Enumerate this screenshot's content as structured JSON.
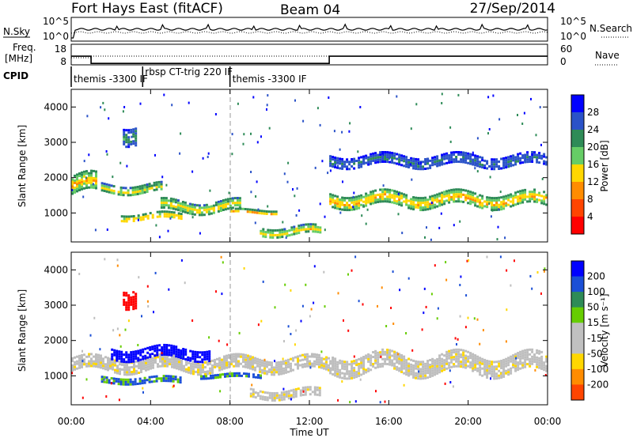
{
  "header": {
    "station": "Fort Hays East (fitACF)",
    "beam": "Beam 04",
    "date": "27/Sep/2014"
  },
  "top_panels": {
    "nsky_label": "N.Sky",
    "nsky_ticks": [
      "10^5",
      "10^0"
    ],
    "nsearch_label": "N.Search",
    "nsearch_ticks": [
      "10^5",
      "10^0"
    ],
    "freq_label_1": "Freq.",
    "freq_label_2": "[MHz]",
    "freq_ticks": [
      "18",
      "8"
    ],
    "nave_label": "Nave",
    "nave_ticks": [
      "60",
      "0"
    ],
    "cpid_label": "CPID",
    "cpid_segments": [
      {
        "label": "themis -3300 IF",
        "start_hour": 0.0
      },
      {
        "label": "rbsp CT-trig 220 IF",
        "start_hour": 3.6
      },
      {
        "label": "themis -3300 IF",
        "start_hour": 8.0
      }
    ],
    "freq_steps": [
      {
        "from_hour": 0.0,
        "to_hour": 1.0,
        "value": 14.5
      },
      {
        "from_hour": 1.0,
        "to_hour": 13.0,
        "value": 11.0
      },
      {
        "from_hour": 13.0,
        "to_hour": 24.0,
        "value": 14.5
      }
    ]
  },
  "power_panel": {
    "ylabel": "Slant Range [km]",
    "yticks": [
      "4000",
      "3000",
      "2000",
      "1000"
    ],
    "colorbar_label": "Power [dB]",
    "colorbar_ticks": [
      "28",
      "24",
      "20",
      "16",
      "12",
      "8",
      "4"
    ]
  },
  "velocity_panel": {
    "ylabel": "Slant Range [km]",
    "yticks": [
      "4000",
      "3000",
      "2000",
      "1000"
    ],
    "colorbar_label": "Velocity [m s⁻¹]",
    "colorbar_ticks": [
      "200",
      "100",
      "50",
      "15",
      "-15",
      "-50",
      "-100",
      "-200"
    ]
  },
  "xaxis": {
    "label": "Time UT",
    "ticks": [
      "00:00",
      "04:00",
      "08:00",
      "12:00",
      "16:00",
      "20:00",
      "00:00"
    ]
  },
  "colors": {
    "power_scale": [
      "#0000ff",
      "#2a52c8",
      "#2e8b57",
      "#66cd66",
      "#ffd700",
      "#ff8c00",
      "#ff4500",
      "#ff0000"
    ],
    "velocity_scale": [
      "#0000ff",
      "#1b4fd6",
      "#2e8b57",
      "#66cd00",
      "#c0c0c0",
      "#c0c0c0",
      "#ffd700",
      "#ff8c00",
      "#ff4500",
      "#ff0000"
    ],
    "ground_scatter": "#bebebe"
  },
  "chart_data": {
    "type": "heatmap",
    "x_range_hours": [
      0,
      24
    ],
    "y_range_km": [
      180,
      4500
    ],
    "power_bands": [
      {
        "name": "band-a",
        "start_hour": 0.0,
        "end_hour": 1.2,
        "center_km": 1800,
        "width_km": 500,
        "level_db": 22
      },
      {
        "name": "band-b",
        "start_hour": 1.5,
        "end_hour": 4.5,
        "center_km": 1700,
        "width_km": 250,
        "level_db": 18
      },
      {
        "name": "band-c",
        "start_hour": 2.5,
        "end_hour": 5.5,
        "center_km": 900,
        "width_km": 200,
        "level_db": 22
      },
      {
        "name": "band-d",
        "start_hour": 4.5,
        "end_hour": 8.5,
        "center_km": 1200,
        "width_km": 300,
        "level_db": 20
      },
      {
        "name": "band-e",
        "start_hour": 8.0,
        "end_hour": 10.5,
        "center_km": 1050,
        "width_km": 120,
        "level_db": 22
      },
      {
        "name": "band-f",
        "start_hour": 9.5,
        "end_hour": 12.5,
        "center_km": 500,
        "width_km": 250,
        "level_db": 20
      },
      {
        "name": "band-g",
        "start_hour": 13.0,
        "end_hour": 24.0,
        "center_km": 1400,
        "width_km": 350,
        "level_db": 22
      },
      {
        "name": "band-h",
        "start_hour": 13.0,
        "end_hour": 24.0,
        "center_km": 2500,
        "width_km": 300,
        "level_db": 10
      },
      {
        "name": "band-i",
        "start_hour": 2.6,
        "end_hour": 3.3,
        "center_km": 3300,
        "width_km": 500,
        "level_db": 12
      }
    ],
    "velocity_bands": [
      {
        "name": "vel-a",
        "start_hour": 0.0,
        "end_hour": 13.0,
        "center_km": 1350,
        "width_km": 350,
        "velocity": 0
      },
      {
        "name": "vel-b",
        "start_hour": 2.0,
        "end_hour": 7.0,
        "center_km": 1650,
        "width_km": 300,
        "velocity": 180
      },
      {
        "name": "vel-c",
        "start_hour": 1.5,
        "end_hour": 5.5,
        "center_km": 900,
        "width_km": 150,
        "velocity": 80
      },
      {
        "name": "vel-d",
        "start_hour": 6.5,
        "end_hour": 9.5,
        "center_km": 1000,
        "width_km": 120,
        "velocity": 80
      },
      {
        "name": "vel-e",
        "start_hour": 13.0,
        "end_hour": 24.0,
        "center_km": 1350,
        "width_km": 500,
        "velocity": 0
      },
      {
        "name": "vel-f",
        "start_hour": 2.6,
        "end_hour": 3.3,
        "center_km": 3300,
        "width_km": 500,
        "velocity": -150
      },
      {
        "name": "vel-g",
        "start_hour": 9.0,
        "end_hour": 12.5,
        "center_km": 500,
        "width_km": 250,
        "velocity": 0
      }
    ]
  }
}
